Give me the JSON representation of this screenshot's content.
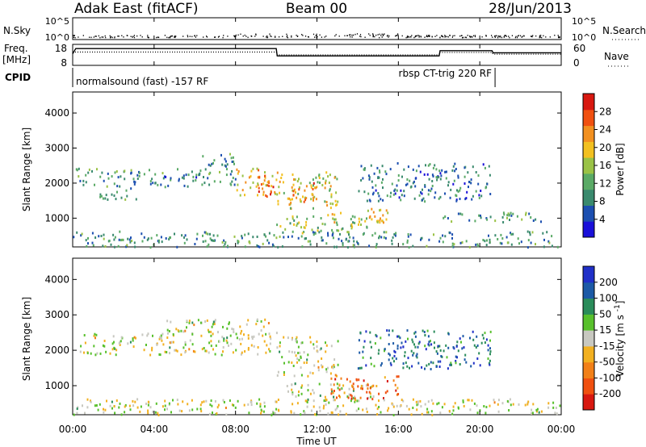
{
  "header": {
    "station": "Adak East (fitACF)",
    "beam": "Beam 00",
    "date": "28/Jun/2013"
  },
  "top_panels": {
    "nsky_label": "N.Sky",
    "nsky_ticks": [
      "10^5",
      "10^0"
    ],
    "nsearch_label": "N.Search",
    "nsearch_ticks": [
      "10^5",
      "10^0"
    ],
    "freq_label": "Freq.",
    "freq_unit": "[MHz]",
    "freq_ticks": [
      "18",
      "8"
    ],
    "nave_label": "Nave",
    "nave_ticks": [
      "60",
      "0"
    ],
    "cpid_label": "CPID",
    "cpid_modes": [
      {
        "label": "normalsound (fast) -157 RF",
        "start_h": 0,
        "end_h": 20.75
      },
      {
        "label": "rbsp CT-trig 220 RF",
        "start_h": 20.75,
        "end_h": 24
      }
    ],
    "freq_series_mhz": [
      [
        0,
        13.5
      ],
      [
        0.15,
        16
      ],
      [
        10,
        16
      ],
      [
        10.05,
        12.5
      ],
      [
        18,
        12.5
      ],
      [
        18.05,
        15
      ],
      [
        20.6,
        15
      ],
      [
        20.65,
        14
      ],
      [
        24,
        14
      ]
    ],
    "nave_series": [
      [
        0,
        38
      ],
      [
        10,
        38
      ],
      [
        10.05,
        30
      ],
      [
        18,
        30
      ],
      [
        18.05,
        37
      ],
      [
        20.6,
        37
      ],
      [
        20.65,
        32
      ],
      [
        24,
        32
      ]
    ]
  },
  "chart_data": [
    {
      "type": "heatmap",
      "name": "power",
      "ylabel": "Slant Range [km]",
      "yticks": [
        1000,
        2000,
        3000,
        4000
      ],
      "ylim": [
        180,
        4600
      ],
      "xlim_hours": [
        0,
        24
      ],
      "colorbar_label": "Power [dB]",
      "colorbar_ticks": [
        "4",
        "8",
        "12",
        "16",
        "20",
        "24",
        "28"
      ],
      "colorbar_range": [
        0,
        30
      ],
      "colors": [
        "#1a10d9",
        "#1c4fb0",
        "#3a8a6e",
        "#5aaa66",
        "#9ac246",
        "#f2c020",
        "#f29020",
        "#f05010",
        "#d81810"
      ],
      "scatter_regions": [
        {
          "t0": 0.1,
          "t1": 4.5,
          "r0": 1950,
          "r1": 2450,
          "level": 0.3
        },
        {
          "t0": 1.3,
          "t1": 3.2,
          "r0": 1550,
          "r1": 1950,
          "level": 0.35
        },
        {
          "t0": 4.5,
          "t1": 6.3,
          "r0": 1900,
          "r1": 2450,
          "level": 0.28
        },
        {
          "t0": 6.3,
          "t1": 8.0,
          "r0": 1950,
          "r1": 2900,
          "level": 0.32
        },
        {
          "t0": 8.0,
          "t1": 10.0,
          "r0": 1650,
          "r1": 2450,
          "level": 0.62
        },
        {
          "t0": 9.0,
          "t1": 9.9,
          "r0": 1650,
          "r1": 2250,
          "level": 0.85
        },
        {
          "t0": 10.0,
          "t1": 13.0,
          "r0": 1300,
          "r1": 2350,
          "level": 0.55
        },
        {
          "t0": 10.5,
          "t1": 12.0,
          "r0": 1450,
          "r1": 2050,
          "level": 0.75
        },
        {
          "t0": 10.0,
          "t1": 14.5,
          "r0": 600,
          "r1": 1100,
          "level": 0.45
        },
        {
          "t0": 12.5,
          "t1": 15.5,
          "r0": 900,
          "r1": 1300,
          "level": 0.6
        },
        {
          "t0": 14.0,
          "t1": 20.5,
          "r0": 1500,
          "r1": 2600,
          "level": 0.25
        },
        {
          "t0": 18.0,
          "t1": 23.0,
          "r0": 900,
          "r1": 1200,
          "level": 0.3
        },
        {
          "t0": 0.0,
          "t1": 24.0,
          "r0": 200,
          "r1": 650,
          "level": 0.3
        }
      ]
    },
    {
      "type": "heatmap",
      "name": "velocity",
      "ylabel": "Slant Range [km]",
      "yticks": [
        1000,
        2000,
        3000,
        4000
      ],
      "ylim": [
        180,
        4600
      ],
      "xlim_hours": [
        0,
        24
      ],
      "xticks": [
        "00:00",
        "04:00",
        "08:00",
        "12:00",
        "16:00",
        "20:00",
        "00:00"
      ],
      "xlabel": "Time UT",
      "colorbar_label": "Velocity [m s^-1]",
      "colorbar_ticks": [
        "200",
        "100",
        "50",
        "15",
        "-15",
        "-50",
        "-100",
        "-200"
      ],
      "colors": [
        "#2030c8",
        "#1c5aa6",
        "#2a8c5a",
        "#58c02c",
        "#c8c8c0",
        "#f2b020",
        "#f28018",
        "#f05010",
        "#d81810"
      ],
      "scatter_regions": [
        {
          "t0": 0.2,
          "t1": 4.8,
          "r0": 1900,
          "r1": 2500,
          "level": 0.5
        },
        {
          "t0": 4.5,
          "t1": 10.0,
          "r0": 1900,
          "r1": 2900,
          "level": 0.5
        },
        {
          "t0": 10.0,
          "t1": 13.0,
          "r0": 1300,
          "r1": 2400,
          "level": 0.5
        },
        {
          "t0": 10.5,
          "t1": 15.0,
          "r0": 600,
          "r1": 1100,
          "level": 0.45
        },
        {
          "t0": 12.5,
          "t1": 16.0,
          "r0": 650,
          "r1": 1300,
          "level": 0.78
        },
        {
          "t0": 14.0,
          "t1": 20.5,
          "r0": 1500,
          "r1": 2600,
          "level": 0.2
        },
        {
          "t0": 0.0,
          "t1": 24.0,
          "r0": 200,
          "r1": 650,
          "level": 0.5
        }
      ]
    }
  ]
}
